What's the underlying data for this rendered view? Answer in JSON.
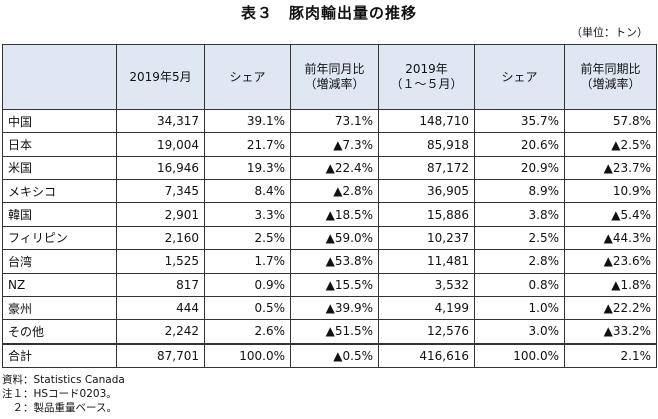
{
  "title": "表３　豚肉輸出量の推移",
  "unit": "（単位：トン）",
  "headers": {
    "country": "",
    "may2019": "2019年5月",
    "share1": "シェア",
    "yoy_month_l1": "前年同月比",
    "yoy_month_l2": "（増減率）",
    "ytd_l1": "2019年",
    "ytd_l2": "（１～５月）",
    "share2": "シェア",
    "yoy_period_l1": "前年同期比",
    "yoy_period_l2": "（増減率）"
  },
  "rows": [
    {
      "name": "中国",
      "may": "34,317",
      "share1": "39.1%",
      "yoy1": "73.1%",
      "ytd": "148,710",
      "share2": "35.7%",
      "yoy2": "57.8%"
    },
    {
      "name": "日本",
      "may": "19,004",
      "share1": "21.7%",
      "yoy1": "▲7.3%",
      "ytd": "85,918",
      "share2": "20.6%",
      "yoy2": "▲2.5%"
    },
    {
      "name": "米国",
      "may": "16,946",
      "share1": "19.3%",
      "yoy1": "▲22.4%",
      "ytd": "87,172",
      "share2": "20.9%",
      "yoy2": "▲23.7%"
    },
    {
      "name": "メキシコ",
      "may": "7,345",
      "share1": "8.4%",
      "yoy1": "▲2.8%",
      "ytd": "36,905",
      "share2": "8.9%",
      "yoy2": "10.9%"
    },
    {
      "name": "韓国",
      "may": "2,901",
      "share1": "3.3%",
      "yoy1": "▲18.5%",
      "ytd": "15,886",
      "share2": "3.8%",
      "yoy2": "▲5.4%"
    },
    {
      "name": "フィリピン",
      "may": "2,160",
      "share1": "2.5%",
      "yoy1": "▲59.0%",
      "ytd": "10,237",
      "share2": "2.5%",
      "yoy2": "▲44.3%"
    },
    {
      "name": "台湾",
      "may": "1,525",
      "share1": "1.7%",
      "yoy1": "▲53.8%",
      "ytd": "11,481",
      "share2": "2.8%",
      "yoy2": "▲23.6%"
    },
    {
      "name": "NZ",
      "may": "817",
      "share1": "0.9%",
      "yoy1": "▲15.5%",
      "ytd": "3,532",
      "share2": "0.8%",
      "yoy2": "▲1.8%"
    },
    {
      "name": "豪州",
      "may": "444",
      "share1": "0.5%",
      "yoy1": "▲39.9%",
      "ytd": "4,199",
      "share2": "1.0%",
      "yoy2": "▲22.2%"
    },
    {
      "name": "その他",
      "may": "2,242",
      "share1": "2.6%",
      "yoy1": "▲51.5%",
      "ytd": "12,576",
      "share2": "3.0%",
      "yoy2": "▲33.2%"
    }
  ],
  "total": {
    "name": "合計",
    "may": "87,701",
    "share1": "100.0%",
    "yoy1": "▲0.5%",
    "ytd": "416,616",
    "share2": "100.0%",
    "yoy2": "2.1%"
  },
  "notes": [
    "資料：Statistics Canada",
    "注１：HSコード0203。",
    "　２：製品重量ベース。"
  ]
}
